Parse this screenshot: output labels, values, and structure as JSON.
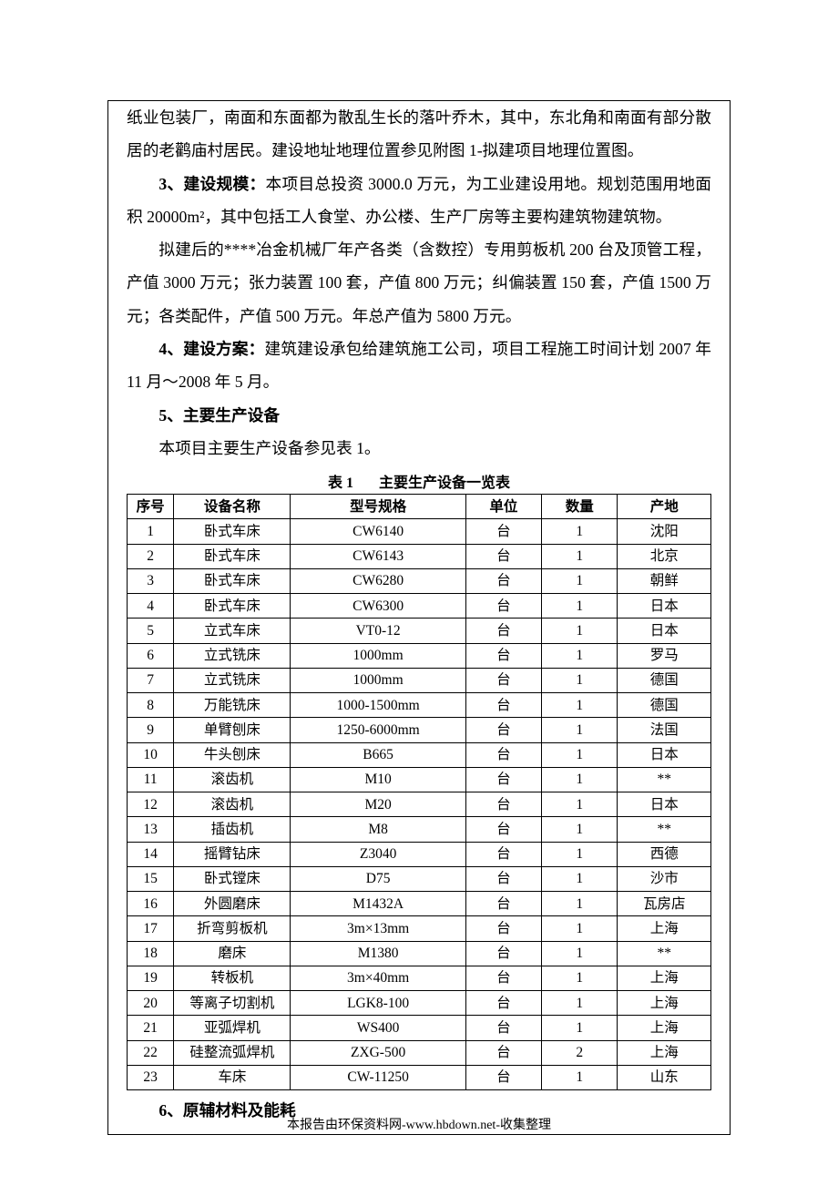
{
  "paragraphs": {
    "p1": "纸业包装厂，南面和东面都为散乱生长的落叶乔木，其中，东北角和南面有部分散居的老鹳庙村居民。建设地址地理位置参见附图 1-拟建项目地理位置图。",
    "p3_label": "3、建设规模：",
    "p3_body": "本项目总投资 3000.0 万元，为工业建设用地。规划范围用地面积 20000m²，其中包括工人食堂、办公楼、生产厂房等主要构建筑物建筑物。",
    "p3b": "拟建后的****冶金机械厂年产各类（含数控）专用剪板机 200 台及顶管工程，产值 3000 万元；张力装置 100 套，产值 800 万元；纠偏装置 150 套，产值 1500 万元；各类配件，产值 500 万元。年总产值为 5800 万元。",
    "p4_label": "4、建设方案：",
    "p4_body": "建筑建设承包给建筑施工公司，项目工程施工时间计划 2007 年 11 月～2008 年 5 月。",
    "p5_label": "5、主要生产设备",
    "p5b": "本项目主要生产设备参见表 1。",
    "p6_label": "6、原辅材料及能耗"
  },
  "table1": {
    "caption_num": "表 1",
    "caption_title": "主要生产设备一览表",
    "columns": [
      "序号",
      "设备名称",
      "型号规格",
      "单位",
      "数量",
      "产地"
    ],
    "rows": [
      [
        "1",
        "卧式车床",
        "CW6140",
        "台",
        "1",
        "沈阳"
      ],
      [
        "2",
        "卧式车床",
        "CW6143",
        "台",
        "1",
        "北京"
      ],
      [
        "3",
        "卧式车床",
        "CW6280",
        "台",
        "1",
        "朝鲜"
      ],
      [
        "4",
        "卧式车床",
        "CW6300",
        "台",
        "1",
        "日本"
      ],
      [
        "5",
        "立式车床",
        "VT0-12",
        "台",
        "1",
        "日本"
      ],
      [
        "6",
        "立式铣床",
        "1000mm",
        "台",
        "1",
        "罗马"
      ],
      [
        "7",
        "立式铣床",
        "1000mm",
        "台",
        "1",
        "德国"
      ],
      [
        "8",
        "万能铣床",
        "1000-1500mm",
        "台",
        "1",
        "德国"
      ],
      [
        "9",
        "单臂刨床",
        "1250-6000mm",
        "台",
        "1",
        "法国"
      ],
      [
        "10",
        "牛头刨床",
        "B665",
        "台",
        "1",
        "日本"
      ],
      [
        "11",
        "滚齿机",
        "M10",
        "台",
        "1",
        "**"
      ],
      [
        "12",
        "滚齿机",
        "M20",
        "台",
        "1",
        "日本"
      ],
      [
        "13",
        "插齿机",
        "M8",
        "台",
        "1",
        "**"
      ],
      [
        "14",
        "摇臂钻床",
        "Z3040",
        "台",
        "1",
        "西德"
      ],
      [
        "15",
        "卧式镗床",
        "D75",
        "台",
        "1",
        "沙市"
      ],
      [
        "16",
        "外圆磨床",
        "M1432A",
        "台",
        "1",
        "瓦房店"
      ],
      [
        "17",
        "折弯剪板机",
        "3m×13mm",
        "台",
        "1",
        "上海"
      ],
      [
        "18",
        "磨床",
        "M1380",
        "台",
        "1",
        "**"
      ],
      [
        "19",
        "转板机",
        "3m×40mm",
        "台",
        "1",
        "上海"
      ],
      [
        "20",
        "等离子切割机",
        "LGK8-100",
        "台",
        "1",
        "上海"
      ],
      [
        "21",
        "亚弧焊机",
        "WS400",
        "台",
        "1",
        "上海"
      ],
      [
        "22",
        "硅整流弧焊机",
        "ZXG-500",
        "台",
        "2",
        "上海"
      ],
      [
        "23",
        "车床",
        "CW-11250",
        "台",
        "1",
        "山东"
      ]
    ]
  },
  "footer": "本报告由环保资料网-www.hbdown.net-收集整理"
}
